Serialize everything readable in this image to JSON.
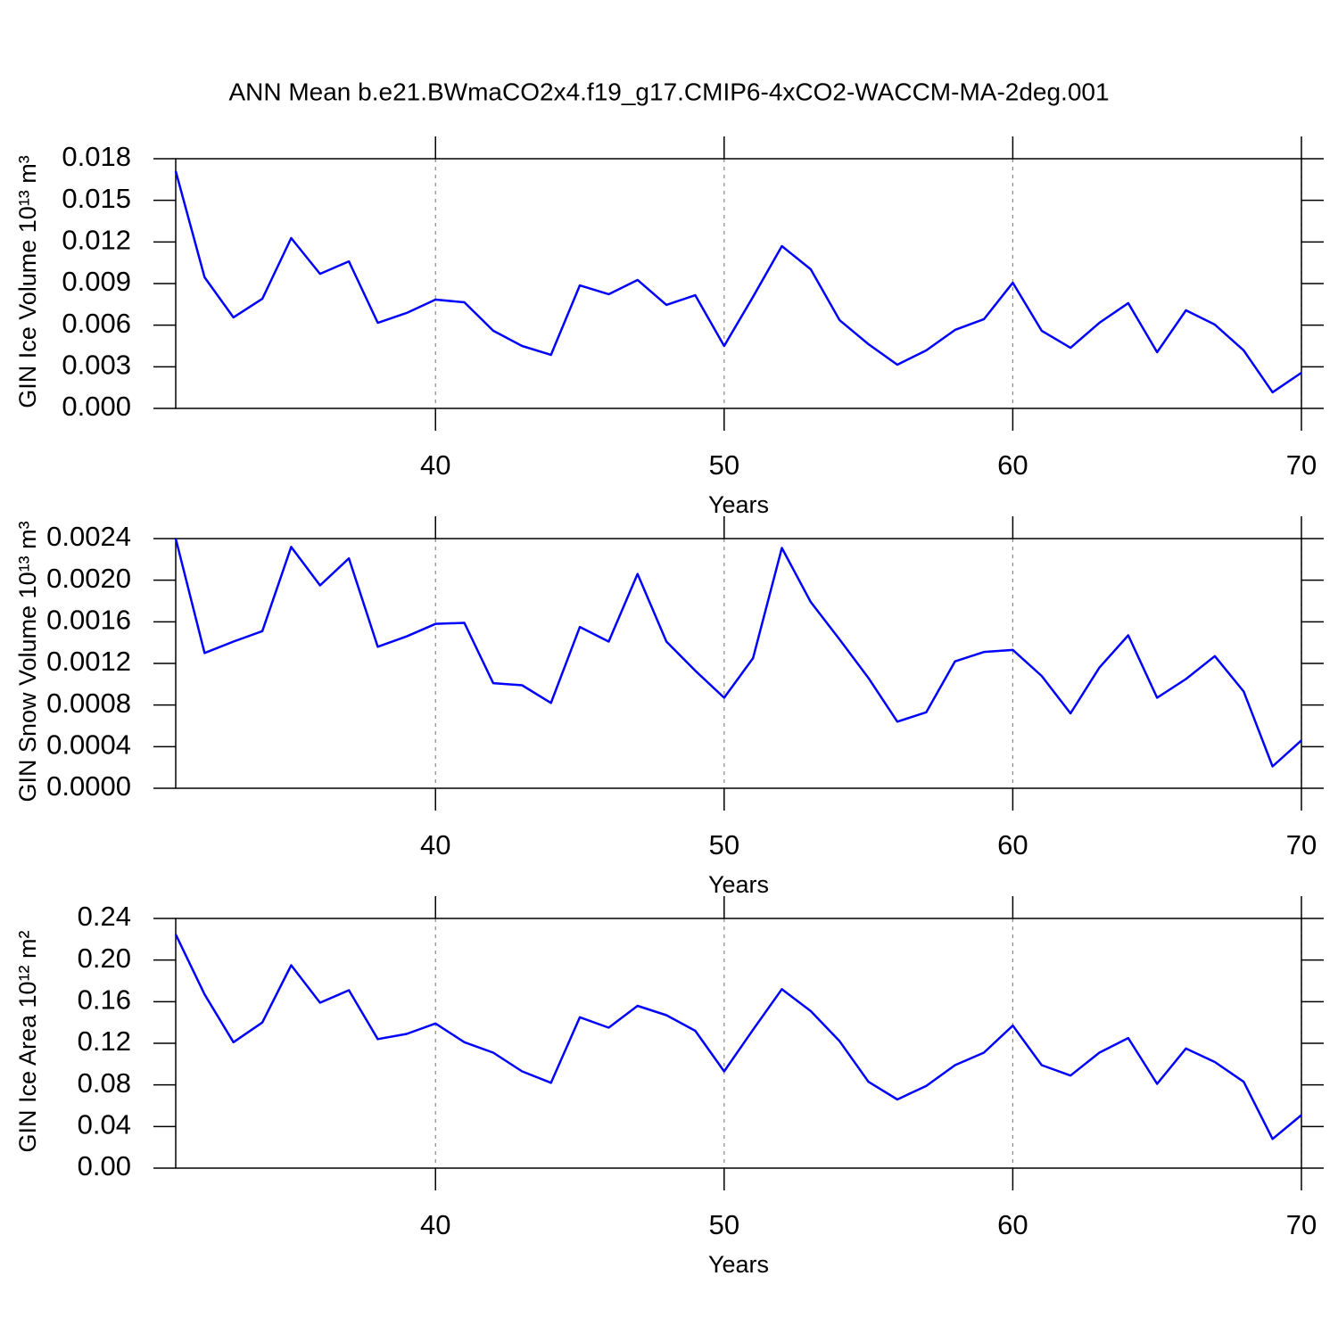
{
  "chart_data": [
    {
      "type": "line",
      "title": "ANN Mean b.e21.BWmaCO2x4.f19_g17.CMIP6-4xCO2-WACCM-MA-2deg.001",
      "xlabel": "Years",
      "ylabel": "GIN Ice Volume 10¹³ m³",
      "x": [
        31,
        32,
        33,
        34,
        35,
        36,
        37,
        38,
        39,
        40,
        41,
        42,
        43,
        44,
        45,
        46,
        47,
        48,
        49,
        50,
        51,
        52,
        53,
        54,
        55,
        56,
        57,
        58,
        59,
        60,
        61,
        62,
        63,
        64,
        65,
        66,
        67,
        68,
        69,
        70
      ],
      "values": [
        0.0171,
        0.00945,
        0.00656,
        0.0079,
        0.01228,
        0.0097,
        0.0106,
        0.00617,
        0.00688,
        0.00784,
        0.00765,
        0.0056,
        0.0045,
        0.00386,
        0.00887,
        0.00823,
        0.00926,
        0.00746,
        0.00816,
        0.0045,
        0.00804,
        0.0117,
        0.01003,
        0.00636,
        0.00463,
        0.00315,
        0.00418,
        0.00566,
        0.00643,
        0.00906,
        0.0056,
        0.00437,
        0.00617,
        0.00759,
        0.00405,
        0.00707,
        0.00604,
        0.00418,
        0.00116,
        0.00257
      ],
      "color": "#0000ff",
      "xlim": [
        31,
        70
      ],
      "xticks": [
        40,
        50,
        60,
        70
      ],
      "xgrid": true,
      "ylim": [
        0,
        0.018
      ],
      "yticks": [
        {
          "value": 0,
          "label": "0.000"
        },
        {
          "value": 0.003,
          "label": "0.003"
        },
        {
          "value": 0.006,
          "label": "0.006"
        },
        {
          "value": 0.009,
          "label": "0.009"
        },
        {
          "value": 0.012,
          "label": "0.012"
        },
        {
          "value": 0.015,
          "label": "0.015"
        },
        {
          "value": 0.018,
          "label": "0.018"
        }
      ]
    },
    {
      "type": "line",
      "xlabel": "Years",
      "ylabel": "GIN Snow Volume 10¹³ m³",
      "x": [
        31,
        32,
        33,
        34,
        35,
        36,
        37,
        38,
        39,
        40,
        41,
        42,
        43,
        44,
        45,
        46,
        47,
        48,
        49,
        50,
        51,
        52,
        53,
        54,
        55,
        56,
        57,
        58,
        59,
        60,
        61,
        62,
        63,
        64,
        65,
        66,
        67,
        68,
        69,
        70
      ],
      "values": [
        0.0024,
        0.0013,
        0.00141,
        0.00151,
        0.00232,
        0.00195,
        0.00221,
        0.00136,
        0.00146,
        0.00158,
        0.00159,
        0.00101,
        0.00099,
        0.00082,
        0.00155,
        0.00141,
        0.00206,
        0.00141,
        0.00113,
        0.00087,
        0.00125,
        0.00231,
        0.00179,
        0.00143,
        0.00106,
        0.00064,
        0.00073,
        0.00122,
        0.00131,
        0.00133,
        0.00108,
        0.00072,
        0.00116,
        0.00147,
        0.00087,
        0.00105,
        0.00127,
        0.00093,
        0.00021,
        0.00046
      ],
      "color": "#0000ff",
      "xlim": [
        31,
        70
      ],
      "xticks": [
        40,
        50,
        60,
        70
      ],
      "xgrid": true,
      "ylim": [
        0,
        0.0024
      ],
      "yticks": [
        {
          "value": 0,
          "label": "0.0000"
        },
        {
          "value": 0.0004,
          "label": "0.0004"
        },
        {
          "value": 0.0008,
          "label": "0.0008"
        },
        {
          "value": 0.0012,
          "label": "0.0012"
        },
        {
          "value": 0.0016,
          "label": "0.0016"
        },
        {
          "value": 0.002,
          "label": "0.0020"
        },
        {
          "value": 0.0024,
          "label": "0.0024"
        }
      ]
    },
    {
      "type": "line",
      "xlabel": "Years",
      "ylabel": "GIN Ice Area 10¹² m²",
      "x": [
        31,
        32,
        33,
        34,
        35,
        36,
        37,
        38,
        39,
        40,
        41,
        42,
        43,
        44,
        45,
        46,
        47,
        48,
        49,
        50,
        51,
        52,
        53,
        54,
        55,
        56,
        57,
        58,
        59,
        60,
        61,
        62,
        63,
        64,
        65,
        66,
        67,
        68,
        69,
        70
      ],
      "values": [
        0.2246,
        0.167,
        0.121,
        0.14,
        0.195,
        0.159,
        0.171,
        0.124,
        0.129,
        0.139,
        0.121,
        0.111,
        0.093,
        0.082,
        0.145,
        0.135,
        0.156,
        0.147,
        0.132,
        0.093,
        0.133,
        0.172,
        0.151,
        0.122,
        0.083,
        0.066,
        0.079,
        0.099,
        0.111,
        0.137,
        0.099,
        0.089,
        0.111,
        0.125,
        0.081,
        0.115,
        0.102,
        0.083,
        0.028,
        0.051
      ],
      "color": "#0000ff",
      "xlim": [
        31,
        70
      ],
      "xticks": [
        40,
        50,
        60,
        70
      ],
      "xgrid": true,
      "ylim": [
        0,
        0.24
      ],
      "yticks": [
        {
          "value": 0,
          "label": "0.00"
        },
        {
          "value": 0.04,
          "label": "0.04"
        },
        {
          "value": 0.08,
          "label": "0.08"
        },
        {
          "value": 0.12,
          "label": "0.12"
        },
        {
          "value": 0.16,
          "label": "0.16"
        },
        {
          "value": 0.2,
          "label": "0.20"
        },
        {
          "value": 0.24,
          "label": "0.24"
        }
      ]
    }
  ]
}
